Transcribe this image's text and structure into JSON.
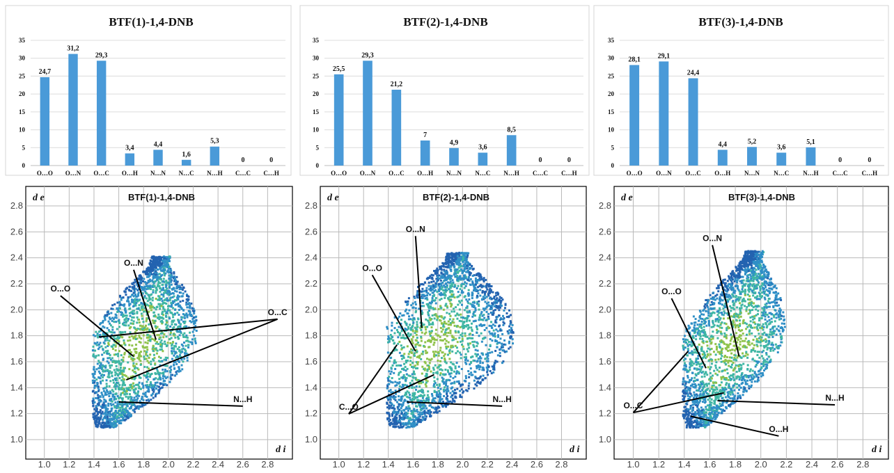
{
  "chart_data": [
    {
      "type": "bar",
      "title": "BTF(1)-1,4-DNB",
      "categories": [
        "O…O",
        "O…N",
        "O…C",
        "O…H",
        "N…N",
        "N…C",
        "N…H",
        "C…C",
        "C…H"
      ],
      "values": [
        24.7,
        31.2,
        29.3,
        3.4,
        4.4,
        1.6,
        5.3,
        0,
        0
      ],
      "value_labels": [
        "24,7",
        "31,2",
        "29,3",
        "3,4",
        "4,4",
        "1,6",
        "5,3",
        "0",
        "0"
      ],
      "ylim": [
        0,
        35
      ],
      "yticks": [
        "0",
        "5",
        "10",
        "15",
        "20",
        "25",
        "30",
        "35"
      ],
      "grid": true,
      "color": "#4a9ad8"
    },
    {
      "type": "bar",
      "title": "BTF(2)-1,4-DNB",
      "categories": [
        "O…O",
        "O…N",
        "O…C",
        "O…H",
        "N…N",
        "N…C",
        "N…H",
        "C…C",
        "C…H"
      ],
      "values": [
        25.5,
        29.3,
        21.2,
        7,
        4.9,
        3.6,
        8.5,
        0,
        0
      ],
      "value_labels": [
        "25,5",
        "29,3",
        "21,2",
        "7",
        "4,9",
        "3,6",
        "8,5",
        "0",
        "0"
      ],
      "ylim": [
        0,
        35
      ],
      "yticks": [
        "0",
        "5",
        "10",
        "15",
        "20",
        "25",
        "30",
        "35"
      ],
      "grid": true,
      "color": "#4a9ad8"
    },
    {
      "type": "bar",
      "title": "BTF(3)-1,4-DNB",
      "categories": [
        "O…O",
        "O…N",
        "O…C",
        "O…H",
        "N…N",
        "N…C",
        "N…H",
        "C…C",
        "C…H"
      ],
      "values": [
        28.1,
        29.1,
        24.4,
        4.4,
        5.2,
        3.6,
        5.1,
        0,
        0
      ],
      "value_labels": [
        "28,1",
        "29,1",
        "24,4",
        "4,4",
        "5,2",
        "3,6",
        "5,1",
        "0",
        "0"
      ],
      "ylim": [
        0,
        35
      ],
      "yticks": [
        "0",
        "5",
        "10",
        "15",
        "20",
        "25",
        "30",
        "35"
      ],
      "grid": true,
      "color": "#4a9ad8"
    },
    {
      "type": "heatmap",
      "title": "BTF(1)-1,4-DNB",
      "xlabel": "d i",
      "ylabel": "d e",
      "xlim": [
        0.85,
        3.0
      ],
      "ylim": [
        0.85,
        2.95
      ],
      "xticks": [
        "1.0",
        "1.2",
        "1.4",
        "1.6",
        "1.8",
        "2.0",
        "2.2",
        "2.4",
        "2.6",
        "2.8"
      ],
      "yticks": [
        "1.0",
        "1.2",
        "1.4",
        "1.6",
        "1.8",
        "2.0",
        "2.2",
        "2.4",
        "2.6",
        "2.8"
      ],
      "grid": true,
      "annotations": [
        {
          "text": "O...N",
          "label": [
            1.72,
            2.34
          ],
          "targets": [
            [
              1.9,
              1.77
            ]
          ]
        },
        {
          "text": "O...O",
          "label": [
            1.13,
            2.14
          ],
          "targets": [
            [
              1.72,
              1.64
            ]
          ]
        },
        {
          "text": "O...C",
          "label": [
            2.88,
            1.96
          ],
          "targets": [
            [
              1.44,
              1.79
            ],
            [
              1.66,
              1.46
            ]
          ]
        },
        {
          "text": "N...H",
          "label": [
            2.6,
            1.29
          ],
          "targets": [
            [
              1.6,
              1.29
            ]
          ]
        }
      ]
    },
    {
      "type": "heatmap",
      "title": "BTF(2)-1,4-DNB",
      "xlabel": "d i",
      "ylabel": "d e",
      "xlim": [
        0.85,
        3.0
      ],
      "ylim": [
        0.85,
        2.95
      ],
      "xticks": [
        "1.0",
        "1.2",
        "1.4",
        "1.6",
        "1.8",
        "2.0",
        "2.2",
        "2.4",
        "2.6",
        "2.8"
      ],
      "yticks": [
        "1.0",
        "1.2",
        "1.4",
        "1.6",
        "1.8",
        "2.0",
        "2.2",
        "2.4",
        "2.6",
        "2.8"
      ],
      "grid": true,
      "annotations": [
        {
          "text": "O...N",
          "label": [
            1.62,
            2.6
          ],
          "targets": [
            [
              1.67,
              1.86
            ]
          ]
        },
        {
          "text": "O...O",
          "label": [
            1.27,
            2.3
          ],
          "targets": [
            [
              1.62,
              1.68
            ]
          ]
        },
        {
          "text": "C...O",
          "label": [
            1.08,
            1.23
          ],
          "targets": [
            [
              1.47,
              1.73
            ],
            [
              1.77,
              1.5
            ]
          ]
        },
        {
          "text": "N...H",
          "label": [
            2.32,
            1.29
          ],
          "targets": [
            [
              1.55,
              1.29
            ]
          ]
        }
      ]
    },
    {
      "type": "heatmap",
      "title": "BTF(3)-1,4-DNB",
      "xlabel": "d i",
      "ylabel": "d e",
      "xlim": [
        0.85,
        3.0
      ],
      "ylim": [
        0.85,
        2.95
      ],
      "xticks": [
        "1.0",
        "1.2",
        "1.4",
        "1.6",
        "1.8",
        "2.0",
        "2.2",
        "2.4",
        "2.6",
        "2.8"
      ],
      "yticks": [
        "1.0",
        "1.2",
        "1.4",
        "1.6",
        "1.8",
        "2.0",
        "2.2",
        "2.4",
        "2.6",
        "2.8"
      ],
      "grid": true,
      "annotations": [
        {
          "text": "O...N",
          "label": [
            1.62,
            2.53
          ],
          "targets": [
            [
              1.83,
              1.64
            ]
          ]
        },
        {
          "text": "O...O",
          "label": [
            1.3,
            2.12
          ],
          "targets": [
            [
              1.57,
              1.55
            ]
          ]
        },
        {
          "text": "O...C",
          "label": [
            1.0,
            1.24
          ],
          "targets": [
            [
              1.43,
              1.68
            ],
            [
              1.71,
              1.36
            ]
          ]
        },
        {
          "text": "N...H",
          "label": [
            2.58,
            1.3
          ],
          "targets": [
            [
              1.66,
              1.3
            ]
          ]
        },
        {
          "text": "O...H",
          "label": [
            2.14,
            1.06
          ],
          "targets": [
            [
              1.45,
              1.18
            ]
          ]
        }
      ]
    }
  ]
}
